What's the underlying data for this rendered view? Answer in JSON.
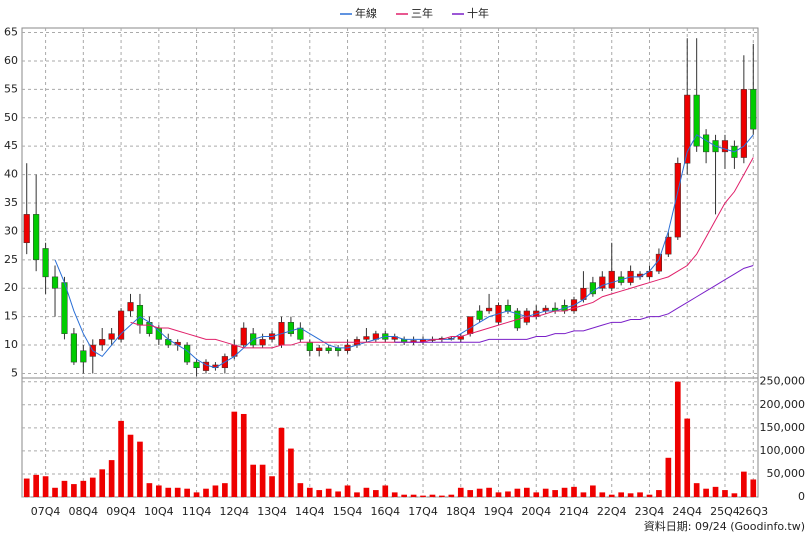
{
  "chart_data": [
    {
      "type": "candlestick",
      "categories": [
        null,
        null,
        "07Q4",
        null,
        null,
        null,
        "08Q4",
        null,
        null,
        null,
        "09Q4",
        null,
        null,
        null,
        "10Q4",
        null,
        null,
        null,
        "11Q4",
        null,
        null,
        null,
        "12Q4",
        null,
        null,
        null,
        "13Q4",
        null,
        null,
        null,
        "14Q4",
        null,
        null,
        null,
        "15Q4",
        null,
        null,
        null,
        "16Q4",
        null,
        null,
        null,
        "17Q4",
        null,
        null,
        null,
        "18Q4",
        null,
        null,
        null,
        "19Q4",
        null,
        null,
        null,
        "20Q4",
        null,
        null,
        null,
        "21Q4",
        null,
        null,
        null,
        "22Q4",
        null,
        null,
        null,
        "23Q4",
        null,
        null,
        null,
        "24Q4",
        null,
        null,
        null,
        "25Q4",
        null,
        null,
        "26Q3"
      ],
      "open": [
        28,
        33,
        27,
        22,
        21,
        12,
        9,
        8,
        10,
        11,
        11,
        16,
        17,
        14,
        13,
        11,
        10,
        10,
        7,
        5.5,
        6,
        6,
        8,
        10,
        12,
        10,
        11,
        10,
        14,
        13,
        10.5,
        9,
        9.5,
        9.5,
        9,
        10,
        11,
        11,
        12,
        11,
        11,
        10.5,
        10.5,
        10.8,
        11,
        11,
        11,
        12,
        16,
        16,
        14,
        17,
        16,
        14,
        15,
        16,
        16.5,
        17,
        16,
        18,
        21,
        20,
        20,
        22,
        21,
        22,
        22,
        23,
        26,
        29,
        42,
        54,
        47,
        46,
        44,
        45,
        43,
        55
      ],
      "high": [
        42,
        40,
        28,
        24,
        22,
        13,
        10,
        11,
        13,
        13,
        16.5,
        19,
        19,
        15,
        13.5,
        12,
        11,
        10.5,
        7.5,
        7.5,
        7,
        8.5,
        11,
        14,
        13,
        12,
        12.5,
        15,
        15,
        14,
        11,
        10,
        10,
        10,
        11,
        11.5,
        13,
        12.5,
        12.5,
        12,
        11.5,
        11.5,
        11.5,
        11.5,
        11.5,
        11.5,
        12,
        15,
        17,
        19,
        17.5,
        18,
        16.5,
        16.5,
        17,
        17,
        17.5,
        18,
        18.5,
        23,
        22,
        23,
        28,
        23,
        24,
        23,
        24,
        27,
        30,
        43,
        64,
        64,
        48,
        47,
        47,
        46,
        61,
        63
      ],
      "low": [
        26,
        23,
        19,
        15,
        11,
        6.5,
        5,
        5,
        9,
        10,
        10.5,
        15,
        12,
        11.5,
        10,
        9.5,
        9,
        6.5,
        4.5,
        5,
        5.5,
        5,
        7.5,
        9.5,
        9.5,
        9.5,
        10.5,
        9.5,
        11.5,
        10.5,
        8,
        8,
        8.5,
        8,
        8.5,
        9.5,
        10.5,
        10.5,
        10.5,
        10.5,
        10,
        10,
        10,
        10.5,
        10.5,
        10.8,
        10.5,
        11.5,
        14,
        15.5,
        13.5,
        15.5,
        12.5,
        13.5,
        14.5,
        15.5,
        15.5,
        15.5,
        15.5,
        17.5,
        18.5,
        19.5,
        19.5,
        20.5,
        20.5,
        21.5,
        21.5,
        22.5,
        25.5,
        28.5,
        40,
        44,
        42,
        33,
        41,
        41,
        42,
        47
      ],
      "close": [
        33,
        25,
        22,
        20,
        12,
        7,
        7,
        10,
        11,
        12,
        16,
        17.5,
        13.5,
        12,
        11,
        10,
        10.5,
        7,
        6,
        7,
        6.5,
        8,
        10,
        13,
        10,
        11,
        12,
        14,
        12,
        11,
        9,
        9.5,
        9,
        9,
        10,
        11,
        11.5,
        12,
        11,
        11.5,
        10.5,
        10.8,
        11,
        11,
        11.2,
        11.2,
        11.5,
        15,
        14.5,
        16.5,
        17,
        16,
        13,
        16,
        16,
        16.5,
        16,
        16,
        18,
        20,
        19,
        22,
        23,
        21,
        23,
        22.5,
        23,
        26,
        29,
        42,
        54,
        45,
        44,
        44,
        46,
        43,
        55,
        48
      ],
      "up_color": "#ee0000",
      "down_color": "#00cc00",
      "series": [
        {
          "name": "年線",
          "color": "#2a6fd6",
          "values": [
            null,
            null,
            null,
            25,
            21,
            16,
            12,
            9,
            8,
            10,
            12,
            13.5,
            15,
            14,
            12.5,
            11,
            10,
            9,
            7.5,
            6.5,
            6,
            7,
            8,
            9.5,
            11,
            11.5,
            11.5,
            12,
            12.5,
            13,
            12,
            11,
            10,
            9.5,
            9.5,
            10,
            10.5,
            11,
            11.5,
            11.5,
            11,
            11,
            11,
            11,
            11,
            11,
            12,
            13,
            14,
            15,
            15.5,
            16,
            15.5,
            15,
            15.5,
            16,
            16,
            16.5,
            17,
            18,
            19.5,
            20.5,
            21,
            21.5,
            22,
            22,
            23,
            25,
            30,
            37,
            44,
            47,
            46,
            45,
            44.5,
            44,
            45,
            47
          ]
        },
        {
          "name": "三年",
          "color": "#e0206a",
          "values": [
            null,
            null,
            null,
            null,
            null,
            null,
            null,
            null,
            null,
            null,
            null,
            14,
            13.5,
            13.5,
            13,
            13,
            12.5,
            12,
            11.5,
            11,
            11,
            10.5,
            10,
            9.5,
            9.5,
            9.5,
            9.5,
            10,
            10,
            10.5,
            10.5,
            10.5,
            10.5,
            10.5,
            10.5,
            10.5,
            10.5,
            10.5,
            10.5,
            10.5,
            10.5,
            10.5,
            10.5,
            11,
            11,
            11.5,
            11.5,
            12,
            12.5,
            13,
            13.5,
            14,
            14.5,
            15,
            15,
            15.5,
            16,
            16,
            16.5,
            17,
            17.5,
            18.5,
            19,
            19.5,
            20,
            20.5,
            21,
            21.5,
            22,
            23,
            24,
            26,
            29,
            32,
            35,
            37,
            40,
            43
          ]
        },
        {
          "name": "十年",
          "color": "#7a1fc8",
          "values": [
            null,
            null,
            null,
            null,
            null,
            null,
            null,
            null,
            null,
            null,
            null,
            null,
            null,
            null,
            null,
            null,
            null,
            null,
            null,
            null,
            null,
            null,
            null,
            null,
            null,
            null,
            null,
            null,
            null,
            null,
            null,
            null,
            null,
            null,
            null,
            null,
            null,
            null,
            null,
            10.5,
            10.5,
            10.5,
            10.5,
            10.5,
            10.5,
            10.5,
            10.5,
            10.5,
            10.5,
            11,
            11,
            11,
            11,
            11,
            11.5,
            11.5,
            12,
            12,
            12.5,
            12.5,
            13,
            13.5,
            14,
            14,
            14.5,
            14.5,
            15,
            15,
            15.5,
            16.5,
            17.5,
            18.5,
            19.5,
            20.5,
            21.5,
            22.5,
            23.5,
            24
          ]
        }
      ],
      "ylim": [
        4.2,
        65.8
      ],
      "yticks": [
        5,
        10,
        15,
        20,
        25,
        30,
        35,
        40,
        45,
        50,
        55,
        60,
        65
      ],
      "grid": true
    },
    {
      "type": "bar",
      "color": "#ee0000",
      "values": [
        40000,
        48000,
        45000,
        20000,
        35000,
        28000,
        35000,
        42000,
        60000,
        80000,
        165000,
        135000,
        120000,
        30000,
        25000,
        20000,
        20000,
        18000,
        10000,
        18000,
        25000,
        30000,
        185000,
        180000,
        70000,
        70000,
        45000,
        150000,
        105000,
        30000,
        20000,
        15000,
        18000,
        12000,
        25000,
        10000,
        20000,
        15000,
        25000,
        10000,
        5000,
        5000,
        3000,
        5000,
        3000,
        5000,
        20000,
        15000,
        18000,
        20000,
        10000,
        12000,
        18000,
        20000,
        10000,
        18000,
        15000,
        20000,
        22000,
        10000,
        25000,
        10000,
        5000,
        10000,
        8000,
        10000,
        5000,
        15000,
        85000,
        250000,
        170000,
        30000,
        18000,
        22000,
        15000,
        8000,
        55000,
        38000
      ],
      "ylim": [
        0,
        258000
      ],
      "yticks": [
        0,
        {
          "value": 50000,
          "label": "50,000"
        },
        {
          "value": 100000,
          "label": "100,000"
        },
        {
          "value": 150000,
          "label": "150,000"
        },
        {
          "value": 200000,
          "label": "200,000"
        },
        {
          "value": 250000,
          "label": "250,000"
        }
      ],
      "grid": true,
      "footer": "資料日期: 09/24 (Goodinfo.tw)"
    }
  ]
}
